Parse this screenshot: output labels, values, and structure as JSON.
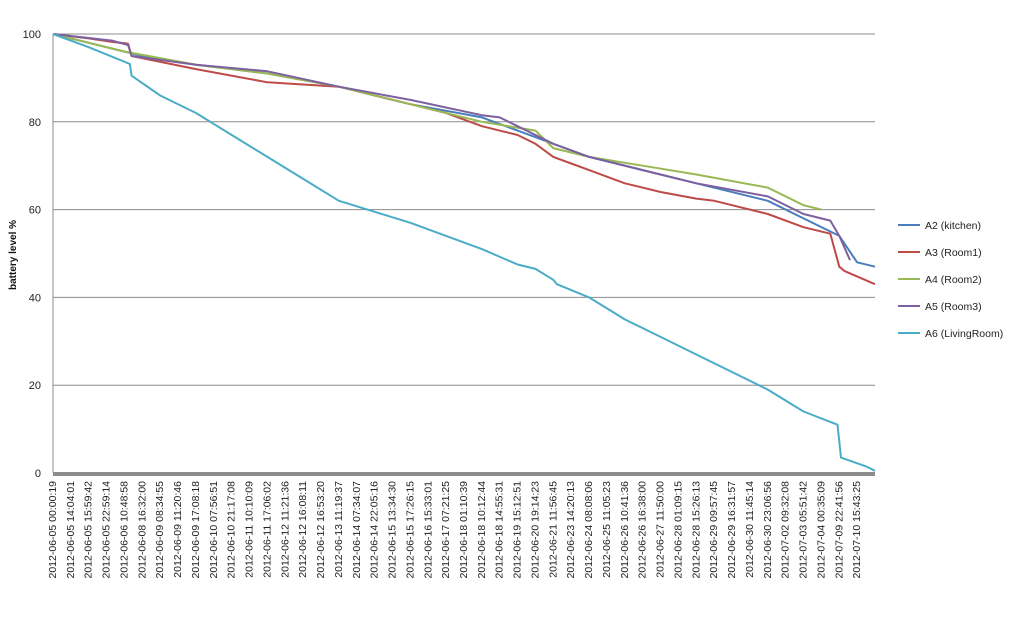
{
  "chart_data": {
    "type": "line",
    "title": "",
    "xlabel": "",
    "ylabel": "battery level %",
    "ylim": [
      0,
      100
    ],
    "yticks": [
      0,
      20,
      40,
      60,
      80,
      100
    ],
    "grid": "horizontal",
    "legend_position": "right",
    "x_tick_labels": [
      "2012-06-05 00:00:19",
      "2012-06-05 14:04:01",
      "2012-06-05 15:59:42",
      "2012-06-05 22:59:14",
      "2012-06-06 10:48:58",
      "2012-06-08 16:32:00",
      "2012-06-09 08:34:55",
      "2012-06-09 11:20:46",
      "2012-06-09 17:08:18",
      "2012-06-10 07:56:51",
      "2012-06-10 21:17:08",
      "2012-06-11 10:10:09",
      "2012-06-11 17:06:02",
      "2012-06-12 11:21:36",
      "2012-06-12 16:08:11",
      "2012-06-12 16:53:20",
      "2012-06-13 11:19:37",
      "2012-06-14 07:34:07",
      "2012-06-14 22:05:16",
      "2012-06-15 13:34:30",
      "2012-06-15 17:26:15",
      "2012-06-16 15:33:01",
      "2012-06-17 07:21:25",
      "2012-06-18 01:10:39",
      "2012-06-18 10:12:44",
      "2012-06-18 14:55:31",
      "2012-06-19 15:12:51",
      "2012-06-20 19:14:23",
      "2012-06-21 11:56:45",
      "2012-06-23 14:20:13",
      "2012-06-24 08:08:06",
      "2012-06-25 11:05:23",
      "2012-06-26 10:41:36",
      "2012-06-26 16:38:00",
      "2012-06-27 11:50:00",
      "2012-06-28 01:09:15",
      "2012-06-28 15:26:13",
      "2012-06-29 09:57:45",
      "2012-06-29 16:31:57",
      "2012-06-30 11:45:14",
      "2012-06-30 23:06:56",
      "2012-07-02 09:32:08",
      "2012-07-03 05:51:42",
      "2012-07-04 00:35:09",
      "2012-07-09 22:41:56",
      "2012-07-10 15:43:25"
    ],
    "x_range": [
      0,
      46
    ],
    "series": [
      {
        "name": "A2 (kitchen)",
        "color": "#4a7ebb",
        "x": [
          0,
          2,
          4,
          5,
          8,
          12,
          16,
          20,
          24,
          26,
          28,
          30,
          33,
          36,
          40,
          42,
          44,
          45,
          46
        ],
        "values": [
          100,
          98,
          96,
          95,
          93,
          91,
          88,
          84,
          81,
          78,
          75,
          72,
          69,
          66,
          62,
          58,
          54,
          48,
          47
        ]
      },
      {
        "name": "A3 (Room1)",
        "color": "#be4b48",
        "x": [
          0,
          2,
          3.3,
          4.2,
          4.4,
          8,
          12,
          16,
          18,
          20,
          22,
          24,
          26,
          27,
          28,
          29,
          30,
          32,
          34,
          36,
          37,
          38,
          40,
          42,
          43.5,
          44,
          44.3,
          46
        ],
        "values": [
          100,
          99,
          98.2,
          97.8,
          95,
          92,
          89,
          88,
          86,
          84,
          82,
          79,
          77,
          75,
          72,
          70.5,
          69,
          66,
          64,
          62.5,
          62,
          61,
          59,
          56,
          54.5,
          47,
          46,
          43
        ]
      },
      {
        "name": "A4 (Room2)",
        "color": "#98b954",
        "x": [
          0,
          4,
          8,
          12,
          16,
          20,
          24,
          27,
          28,
          30,
          33,
          36,
          40,
          42,
          43
        ],
        "values": [
          100,
          96,
          93,
          91,
          88,
          84,
          80,
          78,
          74,
          72,
          70,
          68,
          65,
          61,
          60
        ]
      },
      {
        "name": "A5 (Room3)",
        "color": "#7d60a0",
        "x": [
          0,
          3.3,
          4.2,
          4.4,
          8,
          12,
          16,
          20,
          24,
          25,
          26,
          28,
          30,
          33,
          36,
          40,
          42,
          43.5,
          44,
          44.6
        ],
        "values": [
          100,
          98.5,
          97.5,
          95,
          93,
          91.5,
          88,
          85,
          81.5,
          81,
          79,
          75,
          72,
          69,
          66,
          63,
          59,
          57.5,
          54,
          48.5
        ]
      },
      {
        "name": "A6 (LivingRoom)",
        "color": "#4bacc6",
        "x": [
          0,
          2,
          4.3,
          4.4,
          6,
          8,
          10,
          12,
          14,
          16,
          18,
          20,
          22,
          24,
          26,
          27,
          28,
          28.2,
          30,
          32,
          34,
          36,
          38,
          40,
          42,
          43.9,
          44.1,
          45.5,
          46
        ],
        "values": [
          100,
          97,
          93.2,
          90.5,
          86,
          82,
          77,
          72,
          67,
          62,
          59.5,
          57,
          54,
          51,
          47.5,
          46.5,
          44,
          43,
          40,
          35,
          31,
          27,
          23,
          19,
          14,
          11,
          3.5,
          1.5,
          0.5
        ]
      }
    ]
  }
}
